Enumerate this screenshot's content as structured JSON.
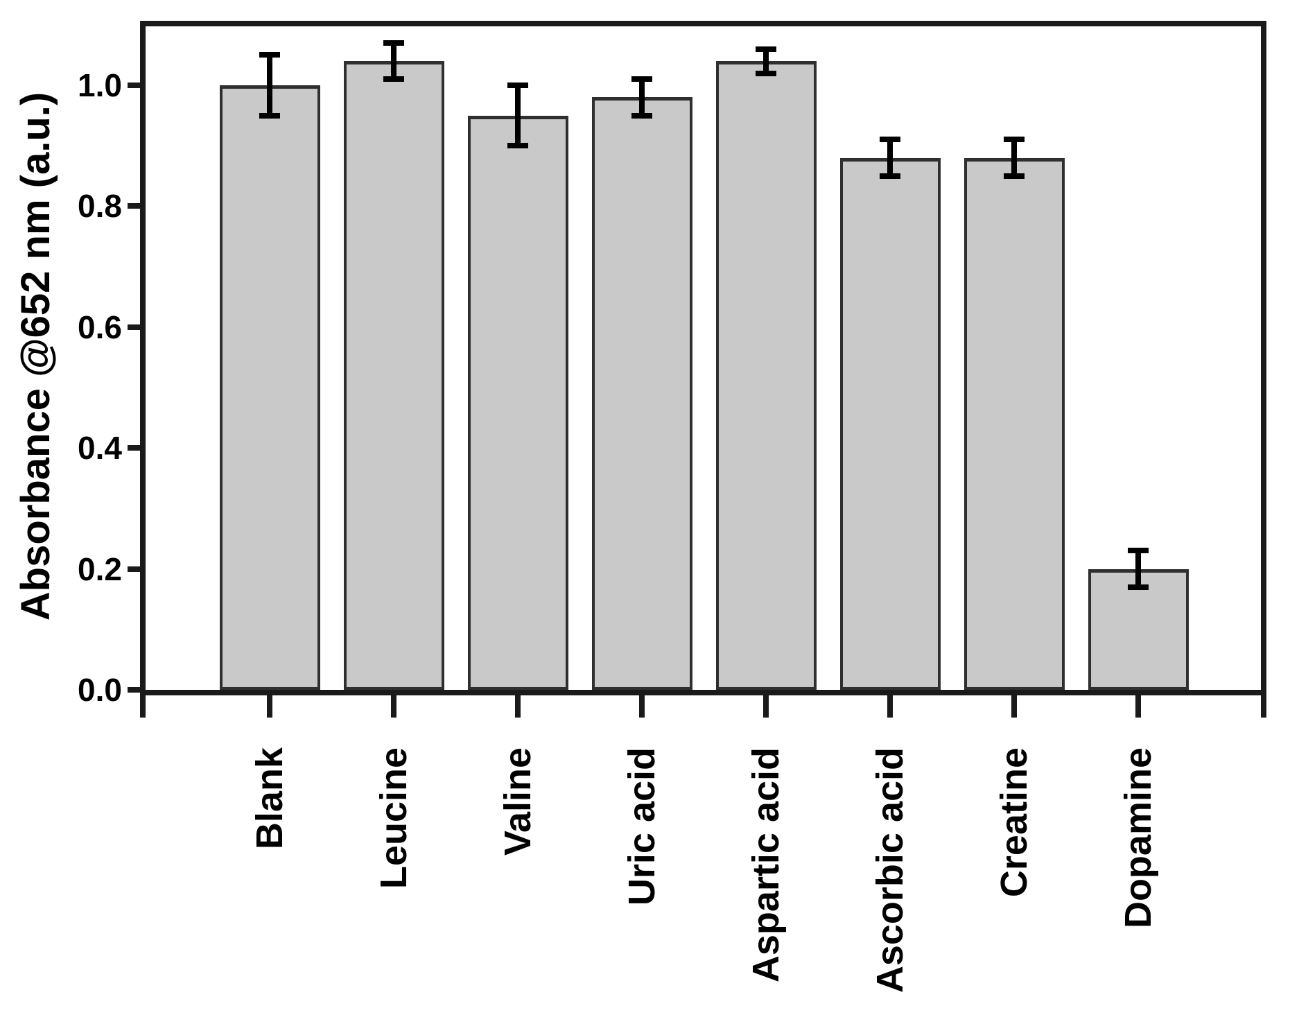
{
  "chart_data": {
    "type": "bar",
    "title": "",
    "xlabel": "",
    "ylabel": "Absorbance @652 nm (a.u.)",
    "categories": [
      "Blank",
      "Leucine",
      "Valine",
      "Uric acid",
      "Aspartic acid",
      "Ascorbic acid",
      "Creatine",
      "Dopamine"
    ],
    "values": [
      1.0,
      1.04,
      0.95,
      0.98,
      1.04,
      0.88,
      0.88,
      0.2
    ],
    "errors": [
      0.05,
      0.03,
      0.05,
      0.03,
      0.02,
      0.03,
      0.03,
      0.03
    ],
    "error_bars": true,
    "ylim": [
      0,
      1.1
    ],
    "yticks": [
      0.0,
      0.2,
      0.4,
      0.6,
      0.8,
      1.0
    ],
    "ytick_labels": [
      "0.0",
      "0.2",
      "0.4",
      "0.6",
      "0.8",
      "1.0"
    ],
    "grid": false,
    "legend": false,
    "x_label_rotation_deg": 90,
    "bar_fill_color": "#c9c9c9",
    "bar_border_color": "#2f2f2f",
    "error_color": "#000000",
    "axis_color": "#1a1a1a",
    "text_color": "#000000",
    "background_color": "#ffffff"
  }
}
